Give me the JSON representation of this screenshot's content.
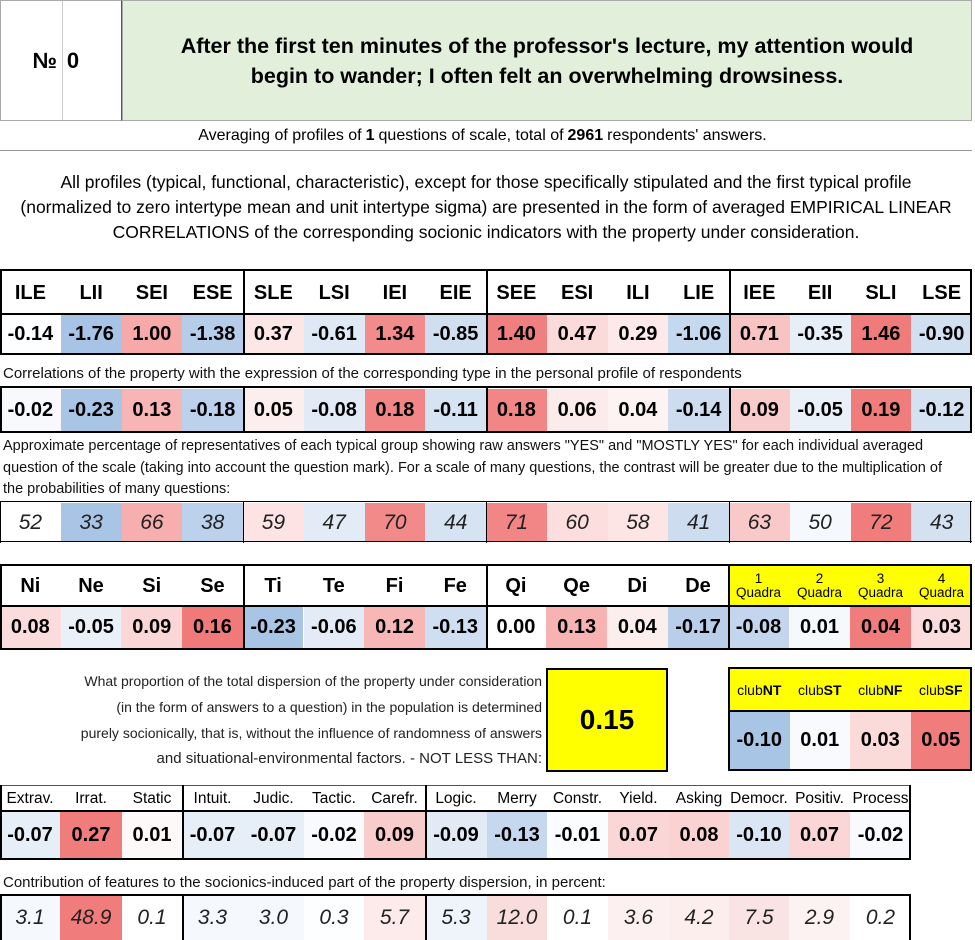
{
  "header": {
    "number_label": "№",
    "number_value": "0",
    "question": "After the first ten minutes of the professor's lecture, my attention would begin to wander; I often felt an overwhelming drowsiness."
  },
  "summary": {
    "part1": "Averaging of profiles of ",
    "questions_count": "1",
    "part2": " questions of scale, total of ",
    "respondents_count": "2961",
    "part3": " respondents' answers."
  },
  "intro": "All profiles (typical, functional, characteristic), except for those specifically stipulated and the first typical profile (normalized to zero intertype mean and unit intertype sigma) are presented in the form of averaged EMPIRICAL LINEAR CORRELATIONS of the corresponding socionic indicators with the property under consideration.",
  "types": {
    "headers": [
      "ILE",
      "LII",
      "SEI",
      "ESE",
      "SLE",
      "LSI",
      "IEI",
      "EIE",
      "SEE",
      "ESI",
      "ILI",
      "LIE",
      "IEE",
      "EII",
      "SLI",
      "LSE"
    ],
    "normalized": [
      "-0.14",
      "-1.76",
      "1.00",
      "-1.38",
      "0.37",
      "-0.61",
      "1.34",
      "-0.85",
      "1.40",
      "0.47",
      "0.29",
      "-1.06",
      "0.71",
      "-0.35",
      "1.46",
      "-0.90"
    ],
    "normalized_colors": [
      "#fdfeff",
      "#a7c3e5",
      "#f7a8a8",
      "#b6cde9",
      "#fde6e6",
      "#dee9f5",
      "#f28b8b",
      "#cfdff0",
      "#f07f7f",
      "#fbdada",
      "#fde9e9",
      "#c5d9ee",
      "#f8c3c3",
      "#e6eef7",
      "#ef7b7b",
      "#d1e0f1"
    ],
    "correlation_caption": "Correlations of the property with the expression of the corresponding type in the personal profile of respondents",
    "correlations": [
      "-0.02",
      "-0.23",
      "0.13",
      "-0.18",
      "0.05",
      "-0.08",
      "0.18",
      "-0.11",
      "0.18",
      "0.06",
      "0.04",
      "-0.14",
      "0.09",
      "-0.05",
      "0.19",
      "-0.12"
    ],
    "correlation_colors": [
      "#f7f9fc",
      "#a9c5e6",
      "#f7b5b5",
      "#bcd1eb",
      "#fdeeee",
      "#e1eaf5",
      "#f28686",
      "#d6e3f2",
      "#f28686",
      "#fcebeb",
      "#fdf3f3",
      "#cddcef",
      "#f9cccc",
      "#e9f0f8",
      "#f07c7c",
      "#d3e1f1"
    ],
    "percentage_caption": "Approximate percentage of representatives of each typical group showing raw answers \"YES\" and \"MOSTLY YES\" for each individual averaged question of the scale (taking into account the question mark). For a scale of many questions, the contrast will be greater due to the multiplication of the probabilities of many questions:",
    "percentages": [
      "52",
      "33",
      "66",
      "38",
      "59",
      "47",
      "70",
      "44",
      "71",
      "60",
      "58",
      "41",
      "63",
      "50",
      "72",
      "43"
    ],
    "percentage_colors": [
      "#ffffff",
      "#a9c5e6",
      "#f7aeae",
      "#bcd1eb",
      "#fde3e3",
      "#e3ecf6",
      "#f28a8a",
      "#d6e3f2",
      "#f28585",
      "#fcdede",
      "#fde5e5",
      "#cddcef",
      "#f9c8c8",
      "#f5f8fc",
      "#f07c7c",
      "#d3e1f1"
    ]
  },
  "functions": {
    "headers": [
      "Ni",
      "Ne",
      "Si",
      "Se",
      "Ti",
      "Te",
      "Fi",
      "Fe",
      "Qi",
      "Qe",
      "Di",
      "De"
    ],
    "values": [
      "0.08",
      "-0.05",
      "0.09",
      "0.16",
      "-0.23",
      "-0.06",
      "0.12",
      "-0.13",
      "0.00",
      "0.13",
      "0.04",
      "-0.17"
    ],
    "colors": [
      "#fbdcdc",
      "#e9f0f8",
      "#fbd6d6",
      "#f07a7a",
      "#a9c5e6",
      "#e3ecf6",
      "#f8b7b7",
      "#cfdef0",
      "#ffffff",
      "#f7b2b2",
      "#fdeeee",
      "#b8cee9"
    ]
  },
  "quadras": {
    "headers": [
      {
        "num": "1",
        "label": "Quadra"
      },
      {
        "num": "2",
        "label": "Quadra"
      },
      {
        "num": "3",
        "label": "Quadra"
      },
      {
        "num": "4",
        "label": "Quadra"
      }
    ],
    "values": [
      "-0.08",
      "0.01",
      "0.04",
      "0.03"
    ],
    "colors": [
      "#c3d6ed",
      "#f6f9fc",
      "#f07c7c",
      "#fbdcdc"
    ],
    "header_bg": "#ffff00"
  },
  "dispersion": {
    "line1": "What proportion of the total dispersion of the property under consideration",
    "line2": "(in the form of answers to a question) in the population is determined",
    "line3": "purely socionically, that is, without the influence of randomness of answers",
    "line4": "and situational-environmental factors. - NOT LESS THAN:",
    "value": "0.15",
    "value_bg": "#ffff00"
  },
  "clubs": {
    "headers": [
      {
        "prefix": "club",
        "bold": "NT"
      },
      {
        "prefix": "club",
        "bold": "ST"
      },
      {
        "prefix": "club",
        "bold": "NF"
      },
      {
        "prefix": "club",
        "bold": "SF"
      }
    ],
    "values": [
      "-0.10",
      "0.01",
      "0.03",
      "0.05"
    ],
    "colors": [
      "#a9c5e6",
      "#f8fafd",
      "#fbdada",
      "#f07c7c"
    ]
  },
  "traits": {
    "headers": [
      "Extrav.",
      "Irrat.",
      "Static",
      "Intuit.",
      "Judic.",
      "Tactic.",
      "Carefr.",
      "Logic.",
      "Merry",
      "Constr.",
      "Yield.",
      "Asking",
      "Democr.",
      "Positiv.",
      "Process"
    ],
    "values": [
      "-0.07",
      "0.27",
      "0.01",
      "-0.07",
      "-0.07",
      "-0.02",
      "0.09",
      "-0.09",
      "-0.13",
      "-0.01",
      "0.07",
      "0.08",
      "-0.10",
      "0.07",
      "-0.02"
    ],
    "colors": [
      "#e6eef7",
      "#f07c7c",
      "#fdf9f9",
      "#e6eef7",
      "#e6eef7",
      "#f8fafd",
      "#f9cccc",
      "#e1eaf5",
      "#c5d8ee",
      "#fafcfe",
      "#fad6d6",
      "#fad2d2",
      "#dbe6f4",
      "#fad6d6",
      "#f8fafd"
    ],
    "contribution_caption": "Contribution of features to the socionics-induced part of the property dispersion, in percent:",
    "contributions": [
      "3.1",
      "48.9",
      "0.1",
      "3.3",
      "3.0",
      "0.3",
      "5.7",
      "5.3",
      "12.0",
      "0.1",
      "3.6",
      "4.2",
      "7.5",
      "2.9",
      "0.2"
    ],
    "contribution_colors": [
      "#f5f8fc",
      "#f07c7c",
      "#ffffff",
      "#f5f8fc",
      "#f5f8fc",
      "#fdfeff",
      "#fdeaea",
      "#eff4fa",
      "#f9dcdc",
      "#ffffff",
      "#fdf0f0",
      "#fdeeee",
      "#fae3e3",
      "#fdf2f2",
      "#ffffff"
    ]
  }
}
